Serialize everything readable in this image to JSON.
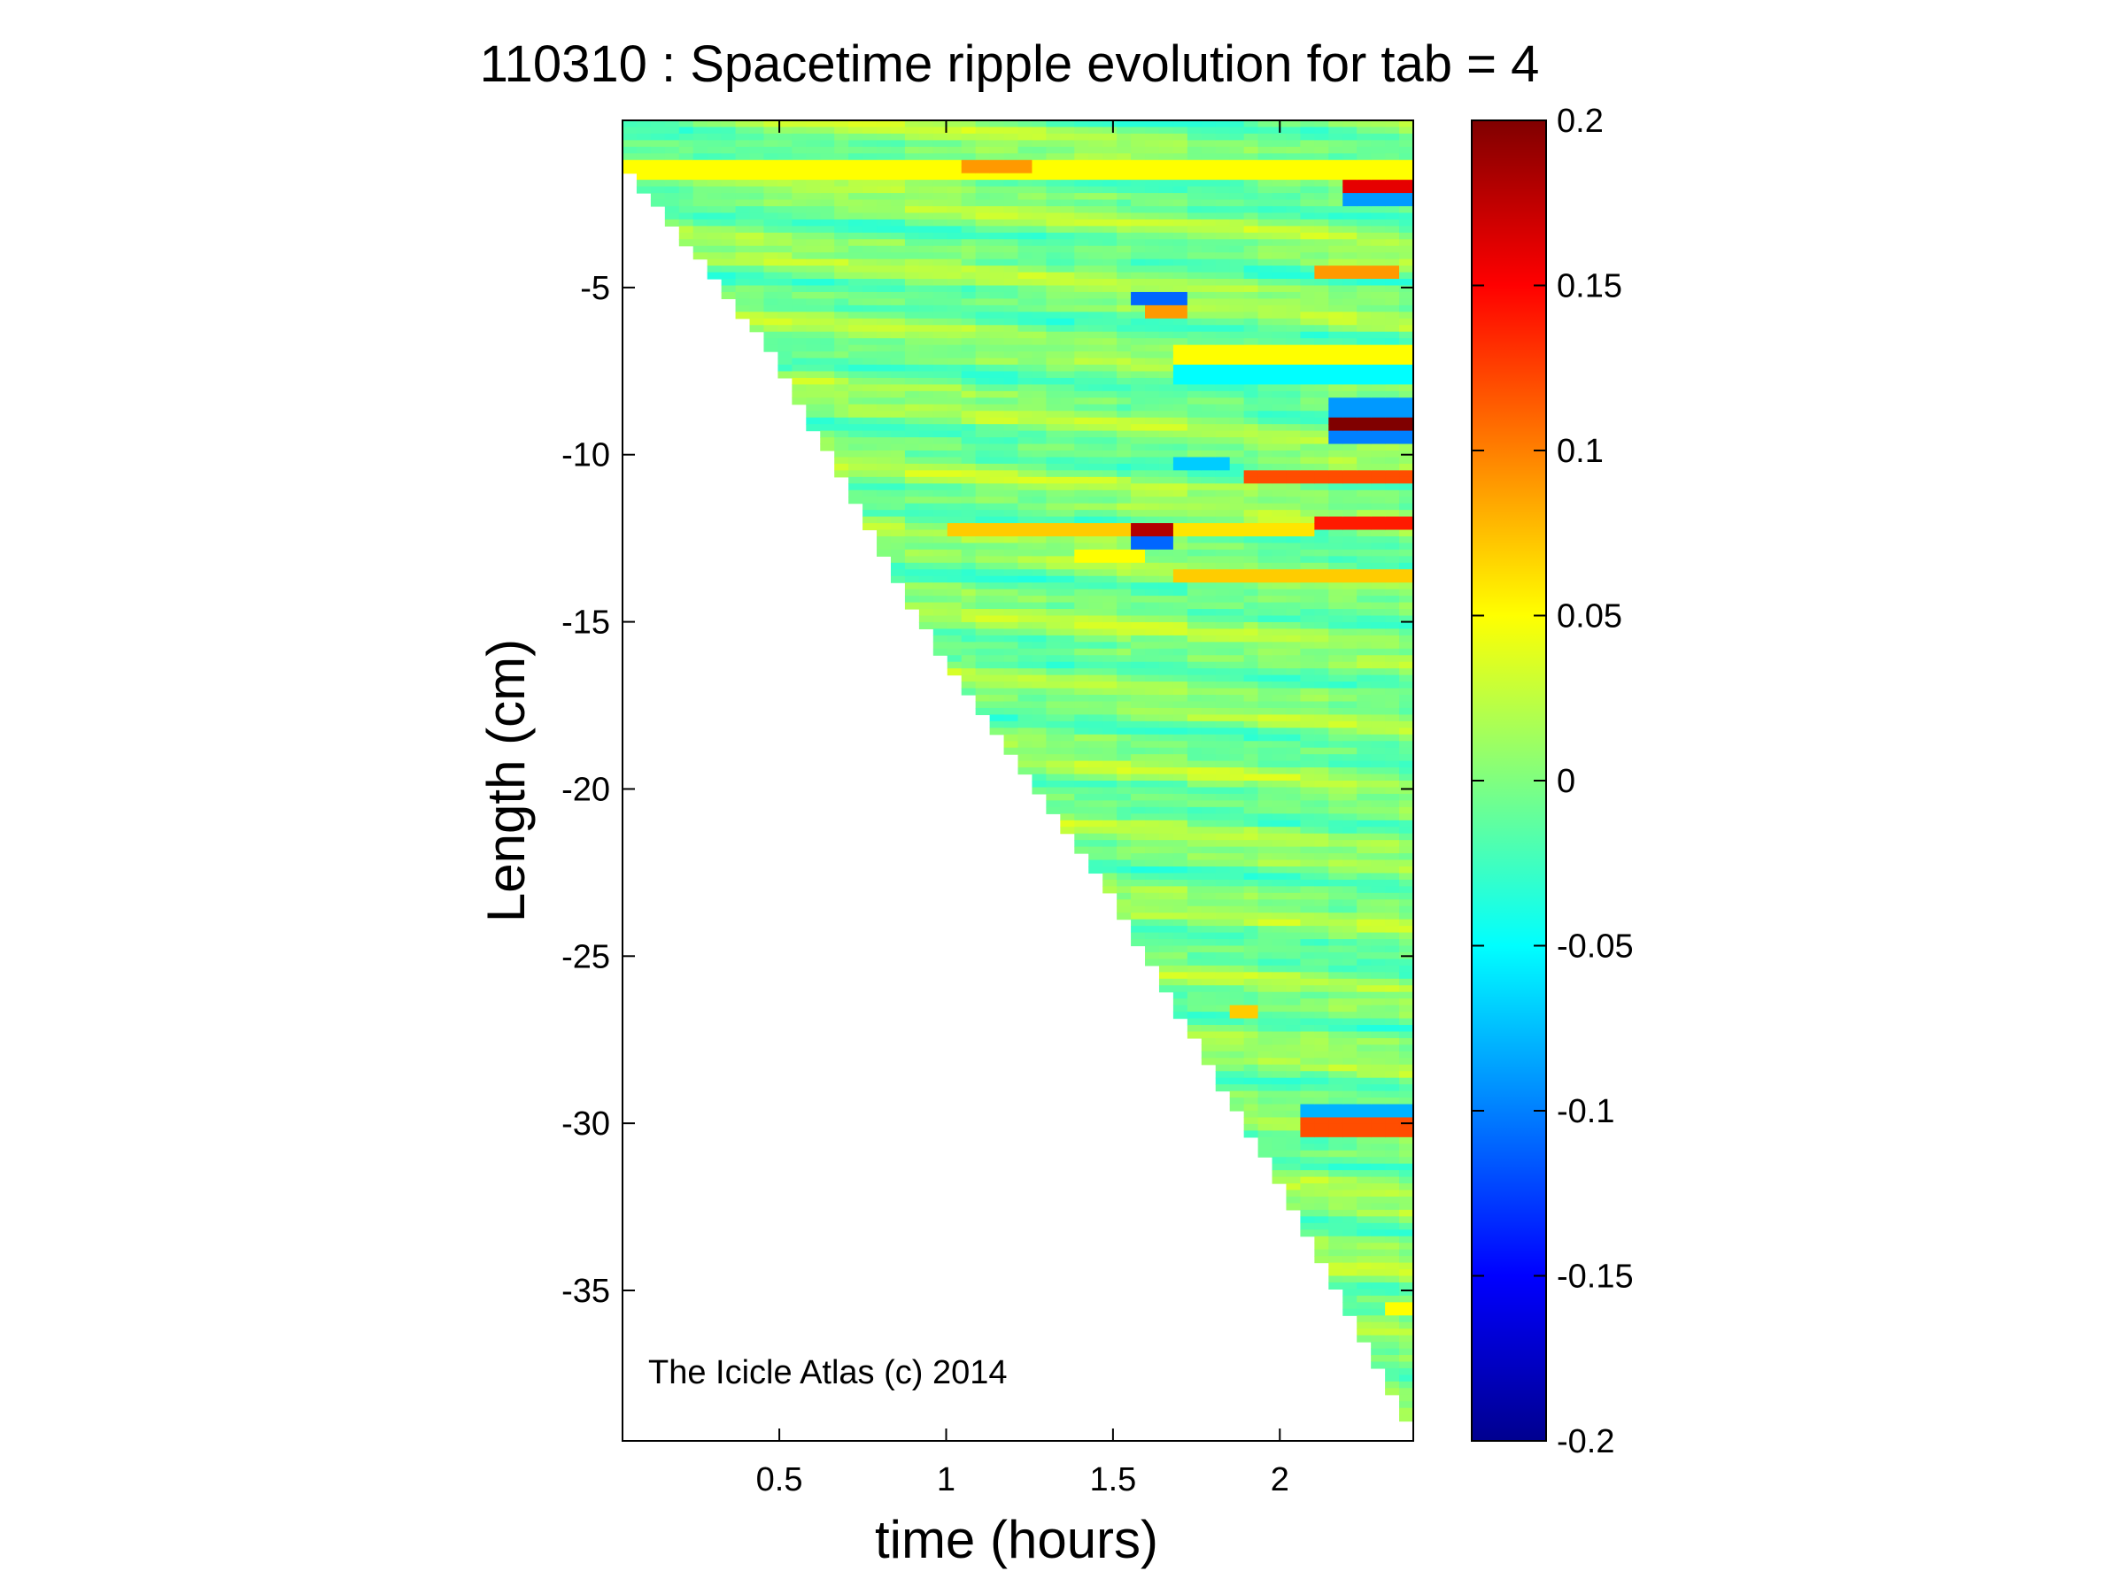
{
  "chart_data": {
    "type": "heatmap",
    "title": "110310 : Spacetime ripple evolution for tab = 4",
    "xlabel": "time (hours)",
    "ylabel": "Length (cm)",
    "xlim": [
      0.03,
      2.4
    ],
    "ylim": [
      -39.5,
      0
    ],
    "x_ticks": [
      0.5,
      1,
      1.5,
      2
    ],
    "x_tick_labels": [
      "0.5",
      "1",
      "1.5",
      "2"
    ],
    "y_ticks": [
      -5,
      -10,
      -15,
      -20,
      -25,
      -30,
      -35
    ],
    "y_tick_labels": [
      "-5",
      "-10",
      "-15",
      "-20",
      "-25",
      "-30",
      "-35"
    ],
    "colorbar": {
      "colormap": "jet",
      "clim": [
        -0.2,
        0.2
      ],
      "ticks": [
        0.2,
        0.15,
        0.1,
        0.05,
        0,
        -0.05,
        -0.1,
        -0.15,
        -0.2
      ],
      "tick_labels": [
        "0.2",
        "0.15",
        "0.1",
        "0.05",
        "0",
        "-0.05",
        "-0.1",
        "-0.15",
        "-0.2"
      ]
    },
    "grid": false,
    "legend": "none",
    "colorbar_placement": "right",
    "data_boundary": {
      "description_free_edge": "length front: values exist only between y = 0 and the icicle tip",
      "time": [
        0.03,
        0.5,
        1.0,
        1.5,
        2.0,
        2.4
      ],
      "tip_length": [
        -1.0,
        -7.0,
        -16.0,
        -23.0,
        -31.5,
        -39.0
      ]
    },
    "background_value": 0,
    "features": [
      {
        "x_range": [
          0.03,
          2.4
        ],
        "y": -1.5,
        "value": 0.05
      },
      {
        "x_range": [
          1.05,
          1.25
        ],
        "y": -1.4,
        "value": 0.09
      },
      {
        "x_range": [
          2.2,
          2.4
        ],
        "y": -1.9,
        "value": 0.16
      },
      {
        "x_range": [
          2.2,
          2.4
        ],
        "y": -2.3,
        "value": -0.09
      },
      {
        "x_range": [
          1.55,
          1.72
        ],
        "y": -5.3,
        "value": -0.11
      },
      {
        "x_range": [
          1.6,
          1.72
        ],
        "y": -5.7,
        "value": 0.09
      },
      {
        "x_range": [
          2.1,
          2.35
        ],
        "y": -4.5,
        "value": 0.09
      },
      {
        "x_range": [
          1.7,
          2.4
        ],
        "y": -7.0,
        "value": 0.05
      },
      {
        "x_range": [
          1.7,
          2.4
        ],
        "y": -7.6,
        "value": -0.05
      },
      {
        "x_range": [
          2.15,
          2.4
        ],
        "y": -8.6,
        "value": -0.09
      },
      {
        "x_range": [
          2.15,
          2.4
        ],
        "y": -9.1,
        "value": 0.2
      },
      {
        "x_range": [
          2.15,
          2.4
        ],
        "y": -9.5,
        "value": -0.1
      },
      {
        "x_range": [
          1.9,
          2.4
        ],
        "y": -10.7,
        "value": 0.12
      },
      {
        "x_range": [
          1.7,
          1.85
        ],
        "y": -10.3,
        "value": -0.07
      },
      {
        "x_range": [
          1.0,
          1.6
        ],
        "y": -12.3,
        "value": 0.07
      },
      {
        "x_range": [
          1.55,
          1.7
        ],
        "y": -12.2,
        "value": 0.18
      },
      {
        "x_range": [
          1.55,
          1.7
        ],
        "y": -12.6,
        "value": -0.11
      },
      {
        "x_range": [
          1.7,
          2.1
        ],
        "y": -12.3,
        "value": 0.06
      },
      {
        "x_range": [
          2.1,
          2.4
        ],
        "y": -12.1,
        "value": 0.14
      },
      {
        "x_range": [
          1.7,
          2.4
        ],
        "y": -13.6,
        "value": 0.07
      },
      {
        "x_range": [
          1.4,
          1.6
        ],
        "y": -13.1,
        "value": 0.05
      },
      {
        "x_range": [
          1.85,
          1.95
        ],
        "y": -26.7,
        "value": 0.07
      },
      {
        "x_range": [
          2.08,
          2.4
        ],
        "y": -29.6,
        "value": -0.08
      },
      {
        "x_range": [
          2.08,
          2.4
        ],
        "y": -30.1,
        "value": 0.12
      },
      {
        "x_range": [
          2.3,
          2.4
        ],
        "y": -35.5,
        "value": 0.05
      }
    ],
    "annotation": "The Icicle Atlas (c) 2014"
  }
}
